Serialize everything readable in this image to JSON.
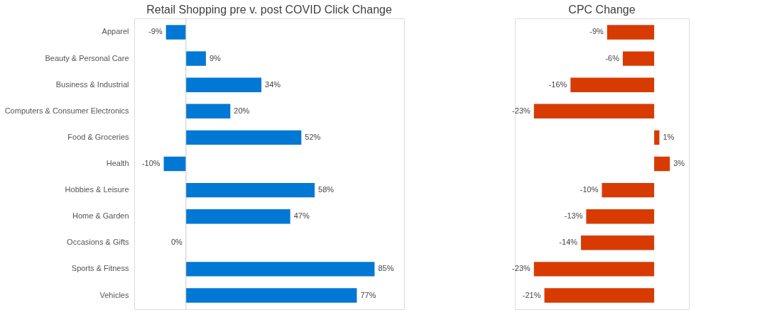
{
  "chart_data": [
    {
      "type": "bar",
      "orientation": "horizontal",
      "title": "Retail Shopping pre v. post COVID Click Change",
      "tick_labels": "y",
      "categories": [
        "Apparel",
        "Beauty & Personal Care",
        "Business & Industrial",
        "Computers & Consumer Electronics",
        "Food & Groceries",
        "Health",
        "Hobbies & Leisure",
        "Home & Garden",
        "Occasions & Gifts",
        "Sports & Fitness",
        "Vehicles"
      ],
      "values": [
        -9,
        9,
        34,
        20,
        52,
        -10,
        58,
        47,
        0,
        85,
        77
      ],
      "color": "#0078d4",
      "value_labels": [
        "-9%",
        "9%",
        "34%",
        "20%",
        "52%",
        "-10%",
        "58%",
        "47%",
        "0%",
        "85%",
        "77%"
      ]
    },
    {
      "type": "bar",
      "orientation": "horizontal",
      "title": "CPC Change",
      "tick_labels": false,
      "categories": [
        null,
        null,
        null,
        null,
        null,
        null,
        null,
        null,
        null,
        null,
        null
      ],
      "values": [
        -9,
        -6,
        -16,
        -23,
        1,
        3,
        -10,
        -13,
        -14,
        -23,
        -21
      ],
      "color": "#d83b01",
      "value_labels": [
        "-9%",
        "-6%",
        "-16%",
        "-23%",
        "1%",
        "3%",
        "-10%",
        "-13%",
        "-14%",
        "-23%",
        "-21%"
      ]
    }
  ]
}
